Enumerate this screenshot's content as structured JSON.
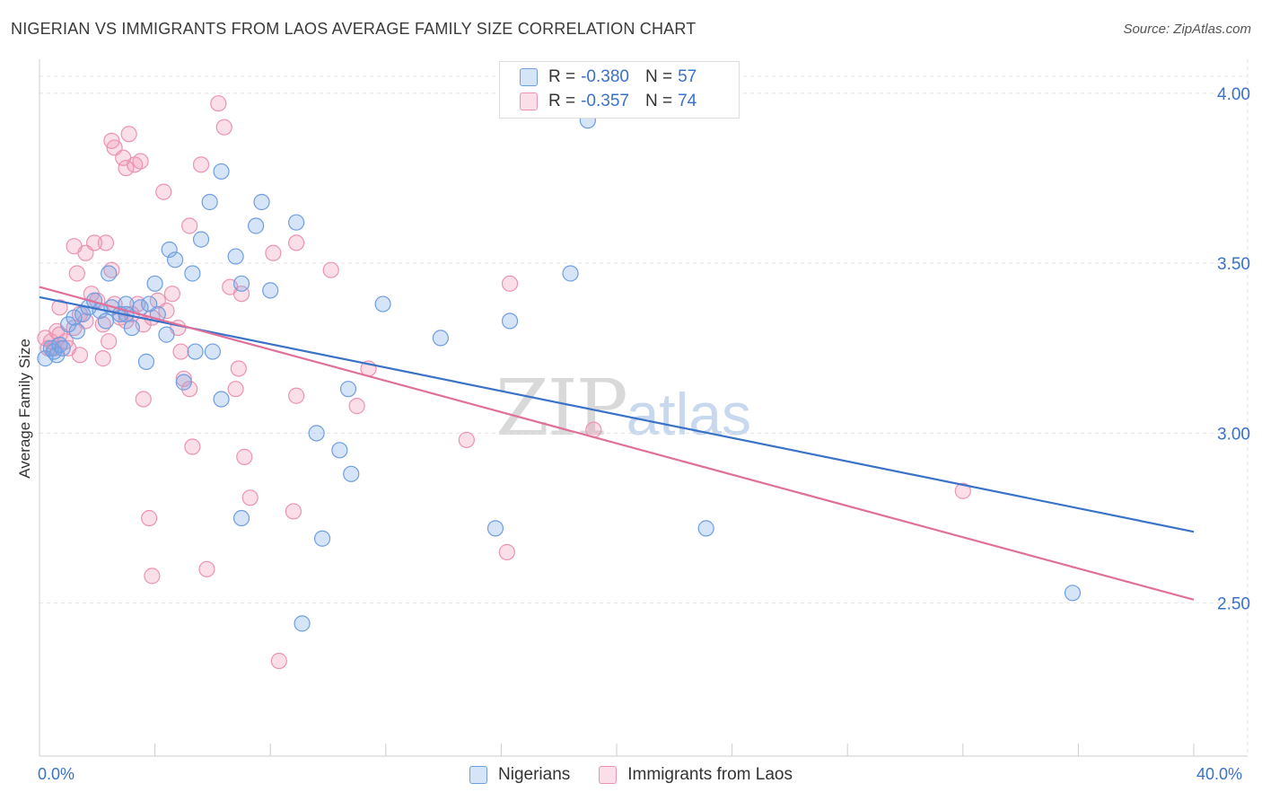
{
  "header": {
    "title": "NIGERIAN VS IMMIGRANTS FROM LAOS AVERAGE FAMILY SIZE CORRELATION CHART",
    "source": "Source: ZipAtlas.com"
  },
  "watermark": {
    "zip": "ZIP",
    "atlas": "atlas"
  },
  "legend_top": {
    "rows": [
      {
        "r_label": "R = ",
        "r_value": "-0.380",
        "n_label": "N = ",
        "n_value": "57",
        "color": "#a8c6f0"
      },
      {
        "r_label": "R = ",
        "r_value": "-0.357",
        "n_label": "N = ",
        "n_value": "74",
        "color": "#f5b8cb"
      }
    ]
  },
  "bottom_legend": {
    "items": [
      "Nigerians",
      "Immigrants from Laos"
    ]
  },
  "x_axis": {
    "min_label": "0.0%",
    "max_label": "40.0%"
  },
  "colors": {
    "blue_fill": "rgba(120,165,230,0.30)",
    "blue_stroke": "#6f9ee0",
    "blue_line": "#3a72c8",
    "pink_fill": "rgba(240,150,180,0.30)",
    "pink_stroke": "#ec93b2",
    "pink_line": "#e0709a",
    "axis_text": "#3a72c8",
    "grid": "#e3e3e3"
  },
  "chart_data": {
    "type": "scatter",
    "title": "NIGERIAN VS IMMIGRANTS FROM LAOS AVERAGE FAMILY SIZE CORRELATION CHART",
    "xlabel": "",
    "ylabel": "Average Family Size",
    "xlim": [
      0,
      40
    ],
    "ylim": [
      2.05,
      4.1
    ],
    "y_ticks": [
      2.5,
      3.0,
      3.5,
      4.0
    ],
    "y_tick_labels": [
      "2.50",
      "3.00",
      "3.50",
      "4.00"
    ],
    "x_ticks_labeled": [
      0,
      40
    ],
    "grid": true,
    "legend_position": "top-center",
    "series": [
      {
        "name": "Nigerians",
        "r": -0.38,
        "n": 57,
        "trend": {
          "x": [
            0,
            40
          ],
          "y": [
            3.4,
            2.71
          ]
        },
        "points": [
          [
            0.2,
            3.22
          ],
          [
            0.4,
            3.25
          ],
          [
            0.5,
            3.24
          ],
          [
            0.6,
            3.23
          ],
          [
            0.7,
            3.26
          ],
          [
            0.8,
            3.25
          ],
          [
            1.0,
            3.32
          ],
          [
            1.2,
            3.34
          ],
          [
            1.5,
            3.35
          ],
          [
            1.7,
            3.37
          ],
          [
            1.9,
            3.39
          ],
          [
            2.1,
            3.36
          ],
          [
            2.3,
            3.33
          ],
          [
            2.5,
            3.37
          ],
          [
            2.8,
            3.35
          ],
          [
            3.0,
            3.38
          ],
          [
            3.2,
            3.31
          ],
          [
            3.5,
            3.37
          ],
          [
            3.8,
            3.38
          ],
          [
            4.1,
            3.35
          ],
          [
            2.4,
            3.47
          ],
          [
            4.0,
            3.44
          ],
          [
            4.5,
            3.54
          ],
          [
            4.7,
            3.51
          ],
          [
            5.0,
            3.15
          ],
          [
            5.3,
            3.47
          ],
          [
            5.6,
            3.57
          ],
          [
            5.9,
            3.68
          ],
          [
            6.3,
            3.77
          ],
          [
            6.8,
            3.52
          ],
          [
            7.5,
            3.61
          ],
          [
            7.7,
            3.68
          ],
          [
            8.0,
            3.42
          ],
          [
            8.9,
            3.62
          ],
          [
            6.0,
            3.24
          ],
          [
            5.4,
            3.24
          ],
          [
            4.4,
            3.29
          ],
          [
            3.7,
            3.21
          ],
          [
            6.3,
            3.1
          ],
          [
            7.0,
            3.44
          ],
          [
            11.9,
            3.38
          ],
          [
            13.9,
            3.28
          ],
          [
            16.3,
            3.33
          ],
          [
            18.4,
            3.47
          ],
          [
            10.7,
            3.13
          ],
          [
            9.6,
            3.0
          ],
          [
            10.4,
            2.95
          ],
          [
            10.8,
            2.88
          ],
          [
            7.0,
            2.75
          ],
          [
            9.8,
            2.69
          ],
          [
            15.8,
            2.72
          ],
          [
            23.1,
            2.72
          ],
          [
            35.8,
            2.53
          ],
          [
            9.1,
            2.44
          ],
          [
            19.0,
            3.92
          ],
          [
            3.0,
            3.35
          ],
          [
            1.3,
            3.3
          ]
        ]
      },
      {
        "name": "Immigrants from Laos",
        "r": -0.357,
        "n": 74,
        "trend": {
          "x": [
            0,
            40
          ],
          "y": [
            3.43,
            2.51
          ]
        },
        "points": [
          [
            0.2,
            3.28
          ],
          [
            0.4,
            3.27
          ],
          [
            0.5,
            3.25
          ],
          [
            0.7,
            3.29
          ],
          [
            0.9,
            3.27
          ],
          [
            1.0,
            3.25
          ],
          [
            1.2,
            3.31
          ],
          [
            1.4,
            3.35
          ],
          [
            1.6,
            3.33
          ],
          [
            1.8,
            3.41
          ],
          [
            2.0,
            3.39
          ],
          [
            2.2,
            3.32
          ],
          [
            2.4,
            3.27
          ],
          [
            2.6,
            3.38
          ],
          [
            2.8,
            3.34
          ],
          [
            3.0,
            3.33
          ],
          [
            3.2,
            3.35
          ],
          [
            3.4,
            3.38
          ],
          [
            3.6,
            3.32
          ],
          [
            3.9,
            3.34
          ],
          [
            4.1,
            3.39
          ],
          [
            4.4,
            3.36
          ],
          [
            0.7,
            3.37
          ],
          [
            1.4,
            3.23
          ],
          [
            2.2,
            3.22
          ],
          [
            1.3,
            3.47
          ],
          [
            1.6,
            3.53
          ],
          [
            1.9,
            3.56
          ],
          [
            2.3,
            3.56
          ],
          [
            2.5,
            3.48
          ],
          [
            1.2,
            3.55
          ],
          [
            2.5,
            3.86
          ],
          [
            2.6,
            3.84
          ],
          [
            2.9,
            3.81
          ],
          [
            3.0,
            3.78
          ],
          [
            3.1,
            3.88
          ],
          [
            3.3,
            3.79
          ],
          [
            3.5,
            3.8
          ],
          [
            4.3,
            3.71
          ],
          [
            5.2,
            3.61
          ],
          [
            5.6,
            3.79
          ],
          [
            6.2,
            3.97
          ],
          [
            6.4,
            3.9
          ],
          [
            4.6,
            3.41
          ],
          [
            4.8,
            3.31
          ],
          [
            4.9,
            3.24
          ],
          [
            6.6,
            3.43
          ],
          [
            7.0,
            3.41
          ],
          [
            6.9,
            3.19
          ],
          [
            6.8,
            3.13
          ],
          [
            5.2,
            3.13
          ],
          [
            5.0,
            3.16
          ],
          [
            8.1,
            3.53
          ],
          [
            8.9,
            3.56
          ],
          [
            10.1,
            3.48
          ],
          [
            5.3,
            2.96
          ],
          [
            7.1,
            2.93
          ],
          [
            8.9,
            3.11
          ],
          [
            11.0,
            3.08
          ],
          [
            11.4,
            3.19
          ],
          [
            14.8,
            2.98
          ],
          [
            16.3,
            3.44
          ],
          [
            19.2,
            3.01
          ],
          [
            7.3,
            2.81
          ],
          [
            8.8,
            2.77
          ],
          [
            3.8,
            2.75
          ],
          [
            3.9,
            2.58
          ],
          [
            5.8,
            2.6
          ],
          [
            16.2,
            2.65
          ],
          [
            8.3,
            2.33
          ],
          [
            32.0,
            2.83
          ],
          [
            3.6,
            3.1
          ],
          [
            0.3,
            3.25
          ],
          [
            0.6,
            3.3
          ]
        ]
      }
    ]
  }
}
